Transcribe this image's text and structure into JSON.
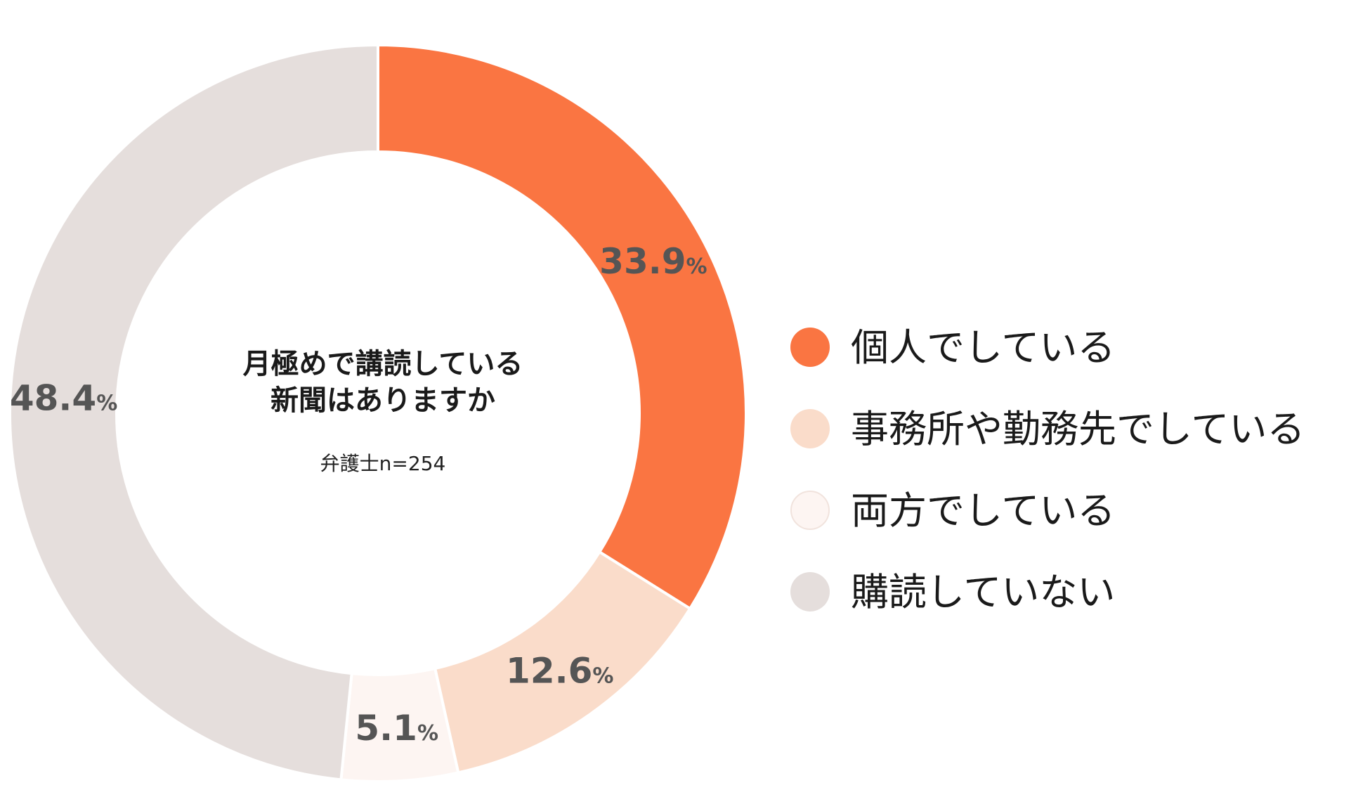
{
  "chart_data": {
    "type": "pie",
    "title": "月極めで講読している新聞はありますか",
    "title_lines": [
      "月極めで講読している",
      "新聞はありますか"
    ],
    "subtitle": "弁護士n=254",
    "donut": true,
    "categories": [
      "個人でしている",
      "事務所や勤務先でしている",
      "両方でしている",
      "購読していない"
    ],
    "values": [
      33.9,
      12.6,
      5.1,
      48.4
    ],
    "value_labels": [
      "33.9",
      "12.6",
      "5.1",
      "48.4"
    ],
    "unit": "%",
    "colors": [
      "#FA7542",
      "#FADCCA",
      "#FDF5F2",
      "#E5DEDC"
    ],
    "legend_position": "right"
  }
}
